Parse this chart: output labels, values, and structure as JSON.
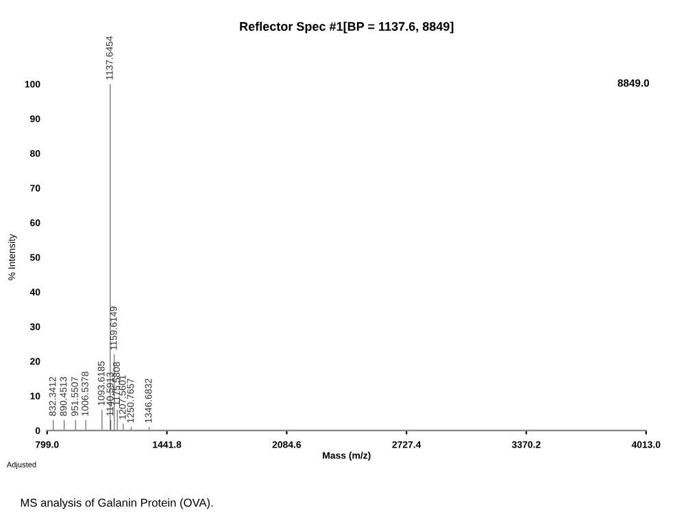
{
  "chart_data": {
    "type": "bar",
    "title": "Reflector Spec #1[BP = 1137.6, 8849]",
    "xlabel": "Mass (m/z)",
    "ylabel": "% Intensity",
    "x": [
      832.3412,
      890.4513,
      951.5507,
      1006.5378,
      1093.6185,
      1137.6454,
      1140.5913,
      1159.6149,
      1175.5808,
      1207.5601,
      1250.7657,
      1346.6832
    ],
    "values": [
      3,
      3,
      3,
      3,
      6,
      100,
      3,
      22,
      6,
      2,
      1,
      1
    ],
    "color": "#555555",
    "xlim": [
      799.0,
      4013.0
    ],
    "xticks": [
      {
        "value": 799.0,
        "label": "799.0"
      },
      {
        "value": 1441.8,
        "label": "1441.8"
      },
      {
        "value": 2084.6,
        "label": "2084.6"
      },
      {
        "value": 2727.4,
        "label": "2727.4"
      },
      {
        "value": 3370.2,
        "label": "3370.2"
      },
      {
        "value": 4013.0,
        "label": "4013.0"
      }
    ],
    "ylim": [
      0,
      100
    ],
    "yticks": [
      0,
      10,
      20,
      30,
      40,
      50,
      60,
      70,
      80,
      90,
      100
    ],
    "grid": false,
    "annotations": [
      {
        "text": "832.3412",
        "x": 832.3412,
        "y": 3
      },
      {
        "text": "890.4513",
        "x": 890.4513,
        "y": 3
      },
      {
        "text": "951.5507",
        "x": 951.5507,
        "y": 3
      },
      {
        "text": "1006.5378",
        "x": 1006.5378,
        "y": 3
      },
      {
        "text": "1093.6185",
        "x": 1093.6185,
        "y": 6
      },
      {
        "text": "1137.6454",
        "x": 1137.6454,
        "y": 100
      },
      {
        "text": "1140.5913",
        "x": 1140.5913,
        "y": 3
      },
      {
        "text": "1159.6149",
        "x": 1159.6149,
        "y": 22
      },
      {
        "text": "1175.5808",
        "x": 1175.5808,
        "y": 6
      },
      {
        "text": "1207.5601",
        "x": 1207.5601,
        "y": 2
      },
      {
        "text": "1250.7657",
        "x": 1250.7657,
        "y": 1
      },
      {
        "text": "1346.6832",
        "x": 1346.6832,
        "y": 1
      },
      "8849.0",
      "Adjusted",
      "MS analysis of Galanin Protein (OVA)."
    ]
  }
}
